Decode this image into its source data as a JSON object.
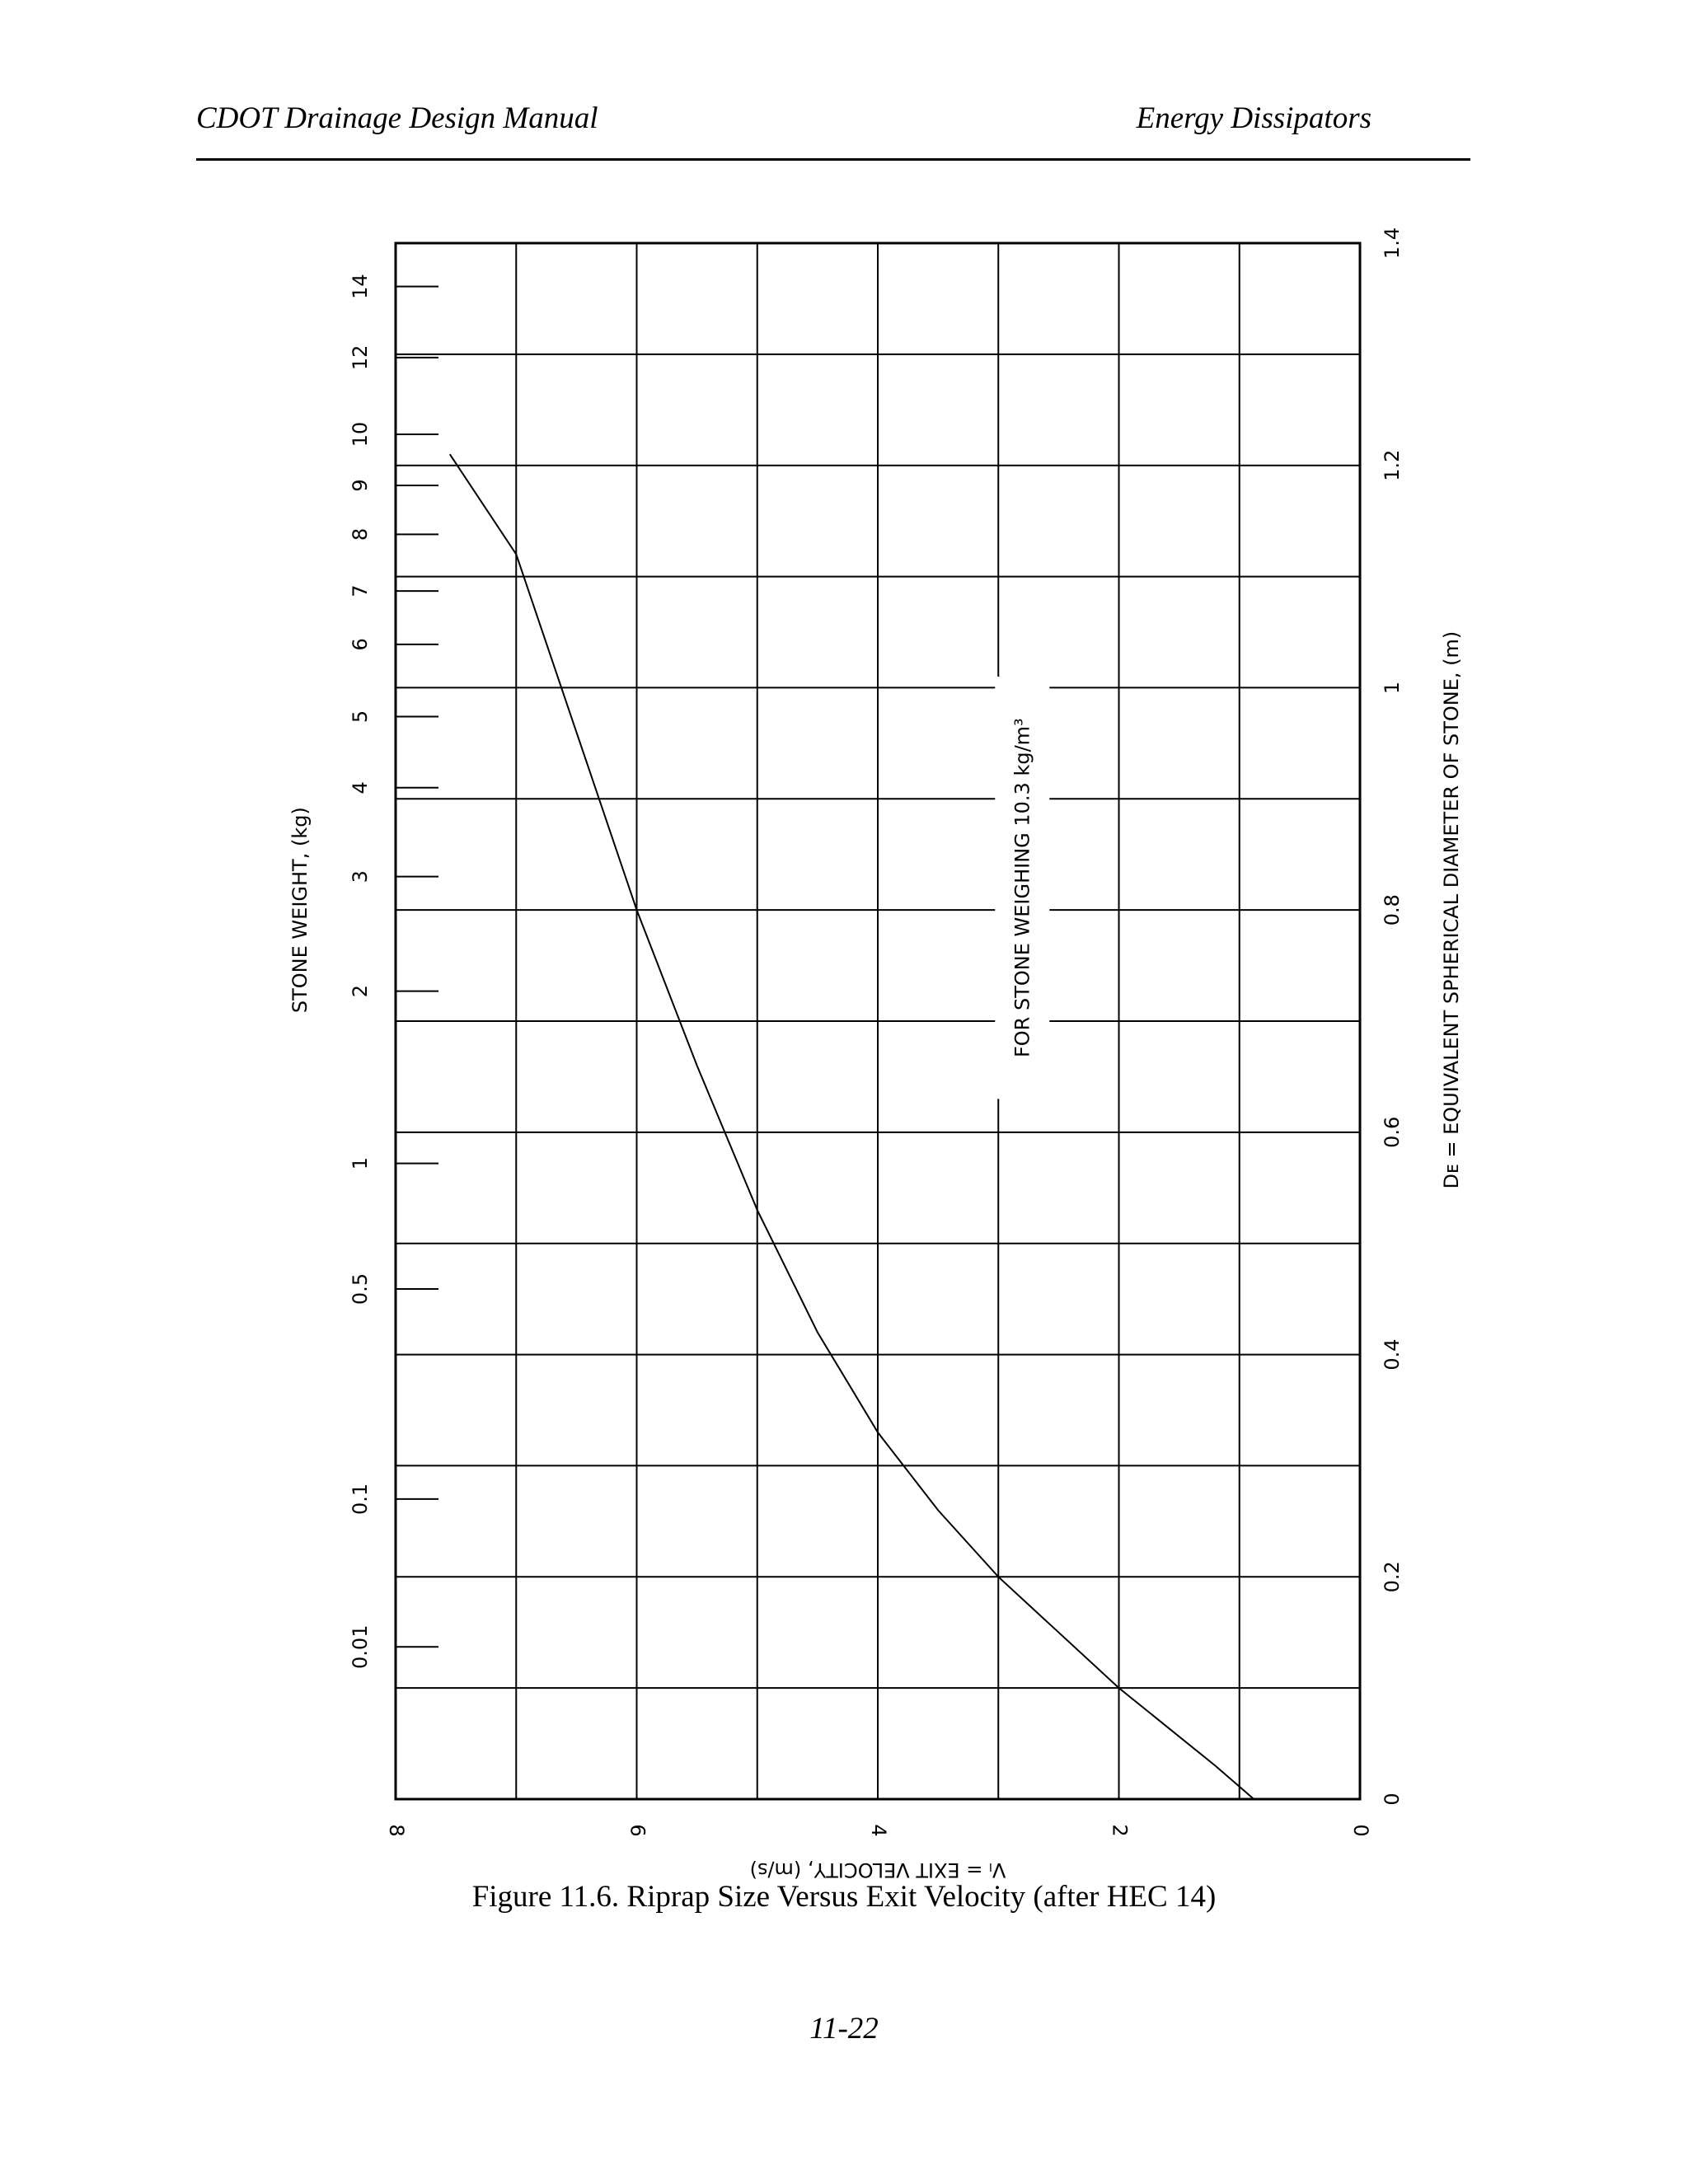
{
  "header": {
    "left": "CDOT Drainage Design Manual",
    "right": "Energy Dissipators"
  },
  "chart_data": {
    "type": "line",
    "orientation": "rotated 90 degrees counter-clockwise",
    "x_axis": {
      "label": "Vₗ = EXIT VELOCITY, (m/s)",
      "range": [
        0,
        8
      ],
      "ticks": [
        0,
        2,
        4,
        6,
        8
      ],
      "gridlines": [
        0,
        1,
        2,
        3,
        4,
        5,
        6,
        7,
        8
      ]
    },
    "y_axis": {
      "label": "Dᴇ = EQUIVALENT SPHERICAL DIAMETER OF STONE, (m)",
      "range": [
        0,
        1.4
      ],
      "ticks": [
        0,
        0.2,
        0.4,
        0.6,
        0.8,
        1,
        1.2,
        1.4
      ],
      "gridlines": [
        0,
        0.1,
        0.2,
        0.3,
        0.4,
        0.5,
        0.6,
        0.7,
        0.8,
        0.9,
        1.0,
        1.1,
        1.2,
        1.3,
        1.4
      ]
    },
    "secondary_axis": {
      "label": "STONE WEIGHT, (kg)",
      "marks": [
        {
          "label": "0.01",
          "d": 0.137
        },
        {
          "label": "0.1",
          "d": 0.27
        },
        {
          "label": "0.5",
          "d": 0.459
        },
        {
          "label": "1",
          "d": 0.572
        },
        {
          "label": "2",
          "d": 0.727
        },
        {
          "label": "3",
          "d": 0.83
        },
        {
          "label": "4",
          "d": 0.91
        },
        {
          "label": "5",
          "d": 0.974
        },
        {
          "label": "6",
          "d": 1.039
        },
        {
          "label": "7",
          "d": 1.087
        },
        {
          "label": "8",
          "d": 1.138
        },
        {
          "label": "9",
          "d": 1.182
        },
        {
          "label": "10",
          "d": 1.228
        },
        {
          "label": "12",
          "d": 1.297
        },
        {
          "label": "14",
          "d": 1.361
        }
      ]
    },
    "series": [
      {
        "points": [
          {
            "x": 0.88,
            "y": 0.0
          },
          {
            "x": 1.2,
            "y": 0.03
          },
          {
            "x": 1.6,
            "y": 0.065
          },
          {
            "x": 2.0,
            "y": 0.1
          },
          {
            "x": 2.5,
            "y": 0.15
          },
          {
            "x": 3.0,
            "y": 0.2
          },
          {
            "x": 3.5,
            "y": 0.26
          },
          {
            "x": 4.0,
            "y": 0.33
          },
          {
            "x": 4.5,
            "y": 0.42
          },
          {
            "x": 5.0,
            "y": 0.53
          },
          {
            "x": 5.5,
            "y": 0.66
          },
          {
            "x": 6.0,
            "y": 0.8
          },
          {
            "x": 6.5,
            "y": 0.96
          },
          {
            "x": 7.0,
            "y": 1.12
          },
          {
            "x": 7.55,
            "y": 1.21
          }
        ]
      }
    ],
    "annotation": "FOR STONE WEIGHING 10.3 kg/m³",
    "grid": true
  },
  "caption": "Figure 11.6.   Riprap Size Versus Exit Velocity (after HEC 14)",
  "page_number": "11-22"
}
